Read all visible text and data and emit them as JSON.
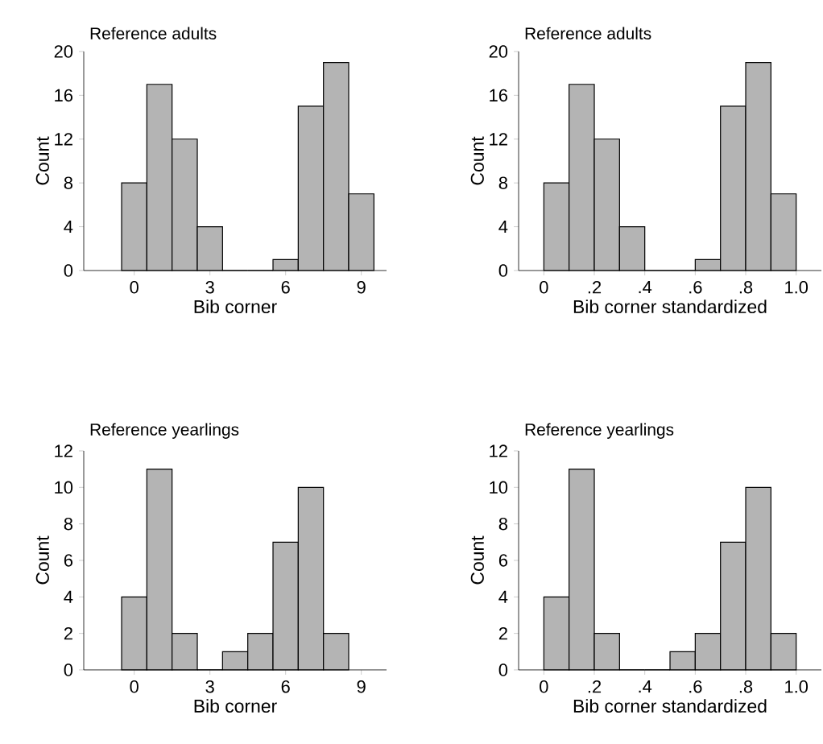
{
  "chart_data": [
    {
      "type": "histogram",
      "title": "Reference adults",
      "xlabel": "Bib corner",
      "ylabel": "Count",
      "bins": [
        -0.5,
        0.5,
        1.5,
        2.5,
        3.5,
        4.5,
        5.5,
        6.5,
        7.5,
        8.5,
        9.5
      ],
      "values": [
        8,
        17,
        12,
        4,
        0,
        0,
        1,
        15,
        19,
        7
      ],
      "color": "#b4b4b4",
      "xlim": [
        -2,
        10
      ],
      "xticks": [
        0,
        3,
        6,
        9
      ],
      "ylim": [
        0,
        20
      ],
      "yticks": [
        0,
        4,
        8,
        12,
        16,
        20
      ]
    },
    {
      "type": "histogram",
      "title": "Reference adults",
      "xlabel": "Bib corner standardized",
      "ylabel": "Count",
      "bins": [
        0,
        0.1,
        0.2,
        0.3,
        0.4,
        0.5,
        0.6,
        0.7,
        0.8,
        0.9,
        1.0
      ],
      "values": [
        8,
        17,
        12,
        4,
        0,
        0,
        1,
        15,
        19,
        7
      ],
      "color": "#b4b4b4",
      "xlim": [
        -0.1,
        1.1
      ],
      "xticks": [
        0,
        {
          "value": 0.2,
          "label": ".2"
        },
        {
          "value": 0.4,
          "label": ".4"
        },
        {
          "value": 0.6,
          "label": ".6"
        },
        {
          "value": 0.8,
          "label": ".8"
        },
        {
          "value": 1.0,
          "label": "1.0"
        }
      ],
      "ylim": [
        0,
        20
      ],
      "yticks": [
        0,
        4,
        8,
        12,
        16,
        20
      ]
    },
    {
      "type": "histogram",
      "title": "Reference yearlings",
      "xlabel": "Bib corner",
      "ylabel": "Count",
      "bins": [
        -0.5,
        0.5,
        1.5,
        2.5,
        3.5,
        4.5,
        5.5,
        6.5,
        7.5,
        8.5
      ],
      "values": [
        4,
        11,
        2,
        0,
        1,
        2,
        7,
        10,
        2
      ],
      "color": "#b4b4b4",
      "xlim": [
        -2,
        10
      ],
      "xticks": [
        0,
        3,
        6,
        9
      ],
      "ylim": [
        0,
        12
      ],
      "yticks": [
        0,
        2,
        4,
        6,
        8,
        10,
        12
      ]
    },
    {
      "type": "histogram",
      "title": "Reference yearlings",
      "xlabel": "Bib corner standardized",
      "ylabel": "Count",
      "bins": [
        0,
        0.1,
        0.2,
        0.3,
        0.4,
        0.5,
        0.6,
        0.7,
        0.8,
        0.9,
        1.0
      ],
      "values": [
        4,
        11,
        2,
        0,
        0,
        1,
        2,
        7,
        10,
        2
      ],
      "color": "#b4b4b4",
      "xlim": [
        -0.1,
        1.1
      ],
      "xticks": [
        0,
        {
          "value": 0.2,
          "label": ".2"
        },
        {
          "value": 0.4,
          "label": ".4"
        },
        {
          "value": 0.6,
          "label": ".6"
        },
        {
          "value": 0.8,
          "label": ".8"
        },
        {
          "value": 1.0,
          "label": "1.0"
        }
      ],
      "ylim": [
        0,
        12
      ],
      "yticks": [
        0,
        2,
        4,
        6,
        8,
        10,
        12
      ]
    }
  ]
}
